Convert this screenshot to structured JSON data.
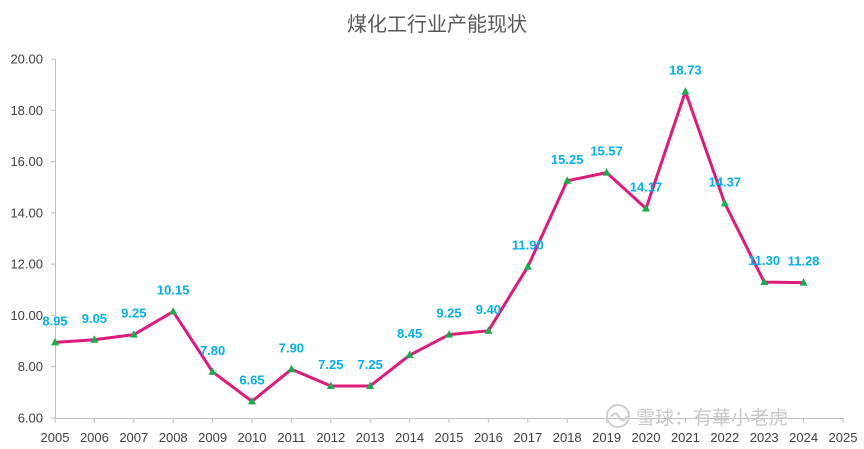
{
  "chart_data": {
    "type": "line",
    "title": "煤化工行业产能现状",
    "xlabel": "",
    "ylabel": "",
    "x": [
      "2005",
      "2006",
      "2007",
      "2008",
      "2009",
      "2010",
      "2011",
      "2012",
      "2013",
      "2014",
      "2015",
      "2016",
      "2017",
      "2018",
      "2019",
      "2020",
      "2021",
      "2022",
      "2023",
      "2024"
    ],
    "x_ticks": [
      "2005",
      "2006",
      "2007",
      "2008",
      "2009",
      "2010",
      "2011",
      "2012",
      "2013",
      "2014",
      "2015",
      "2016",
      "2017",
      "2018",
      "2019",
      "2020",
      "2021",
      "2022",
      "2023",
      "2024",
      "2025"
    ],
    "series": [
      {
        "values": [
          8.95,
          9.05,
          9.25,
          10.15,
          7.8,
          6.65,
          7.9,
          7.25,
          7.25,
          8.45,
          9.25,
          9.4,
          11.9,
          15.25,
          15.57,
          14.17,
          18.73,
          14.37,
          11.3,
          11.28
        ],
        "labels": [
          "8.95",
          "9.05",
          "9.25",
          "10.15",
          "7.80",
          "6.65",
          "7.90",
          "7.25",
          "7.25",
          "8.45",
          "9.25",
          "9.40",
          "11.90",
          "15.25",
          "15.57",
          "14.17",
          "18.73",
          "14.37",
          "11.30",
          "11.28"
        ],
        "line_color": "#E0197D",
        "marker_color": "#1AAE4A",
        "marker": "triangle"
      }
    ],
    "y_ticks": [
      "6.00",
      "8.00",
      "10.00",
      "12.00",
      "14.00",
      "16.00",
      "18.00",
      "20.00"
    ],
    "ylim": [
      6,
      20
    ],
    "xlim": [
      2005,
      2025
    ],
    "grid": false,
    "legend": "none",
    "label_color": "#00B0F0"
  },
  "watermark": {
    "icon": "snowball-icon",
    "text": "雪球：有華小老虎"
  }
}
